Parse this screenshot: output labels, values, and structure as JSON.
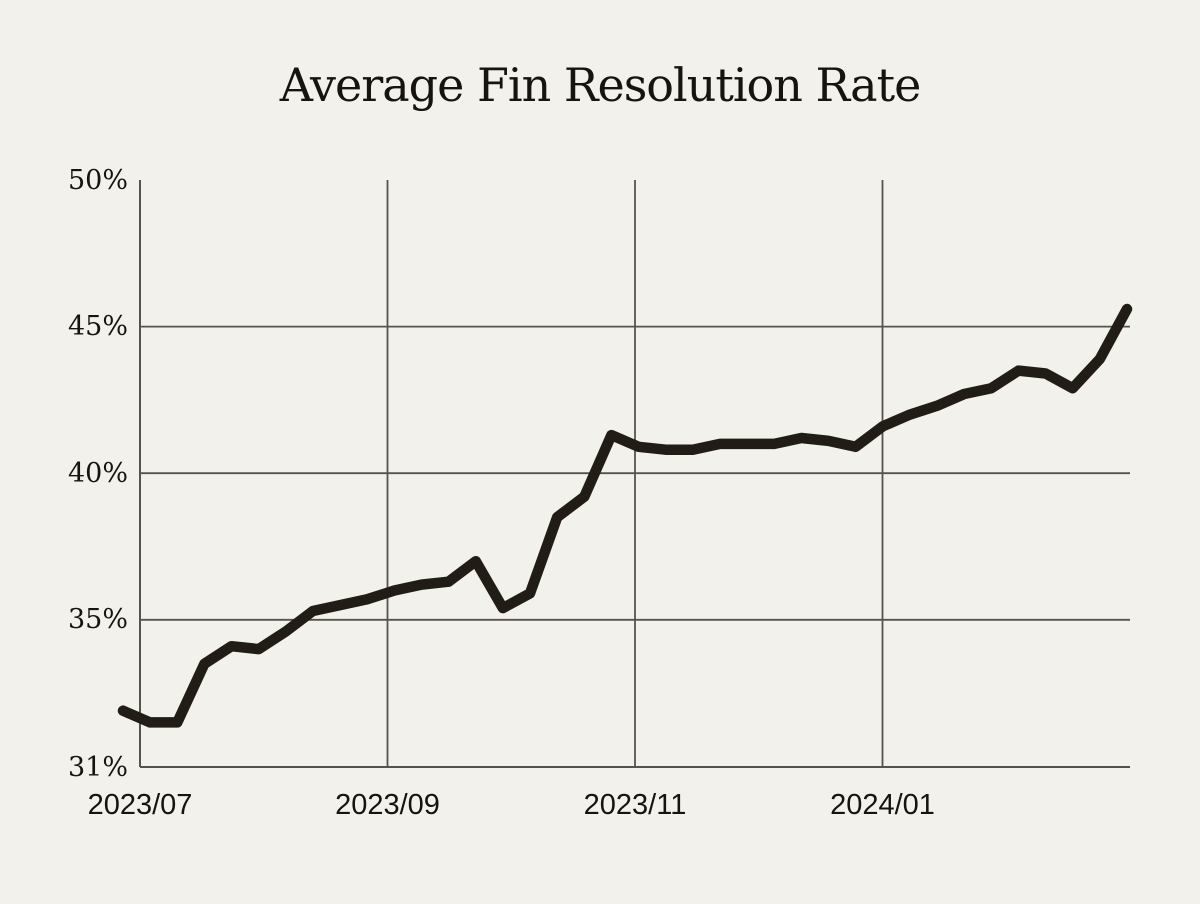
{
  "title": "Average Fin Resolution Rate",
  "colors": {
    "background": "#f2f1eb",
    "line": "#221c16",
    "grid": "#56524c",
    "text": "#17130e"
  },
  "chart_data": {
    "type": "line",
    "title": "Average Fin Resolution Rate",
    "legend": "none",
    "grid": "horizontal gridlines at 35/40/45, vertical gridlines at 2023/09, 2023/11, 2024/01",
    "ylabel": "",
    "xlabel": "",
    "ylim": [
      31,
      50
    ],
    "y_ticks": [
      {
        "label": "50%",
        "value": 50
      },
      {
        "label": "45%",
        "value": 45
      },
      {
        "label": "40%",
        "value": 40
      },
      {
        "label": "35%",
        "value": 35
      },
      {
        "label": "31%",
        "value": 31,
        "at_axis_bottom": true
      }
    ],
    "y_gridline_values": [
      45,
      40,
      35
    ],
    "x_tick_labels": [
      "2023/07",
      "2023/09",
      "2023/11",
      "2024/01"
    ],
    "series": [
      {
        "name": "resolution_rate_percent",
        "values": [
          31.9,
          31.5,
          31.5,
          33.5,
          34.1,
          34.0,
          34.6,
          35.3,
          35.5,
          35.7,
          36.0,
          36.2,
          36.3,
          37.0,
          35.4,
          35.9,
          38.5,
          39.2,
          41.3,
          40.9,
          40.8,
          40.8,
          41.0,
          41.0,
          41.0,
          41.2,
          41.1,
          40.9,
          41.6,
          42.0,
          42.3,
          42.7,
          42.9,
          43.5,
          43.4,
          42.9,
          43.9,
          45.6
        ]
      }
    ]
  }
}
